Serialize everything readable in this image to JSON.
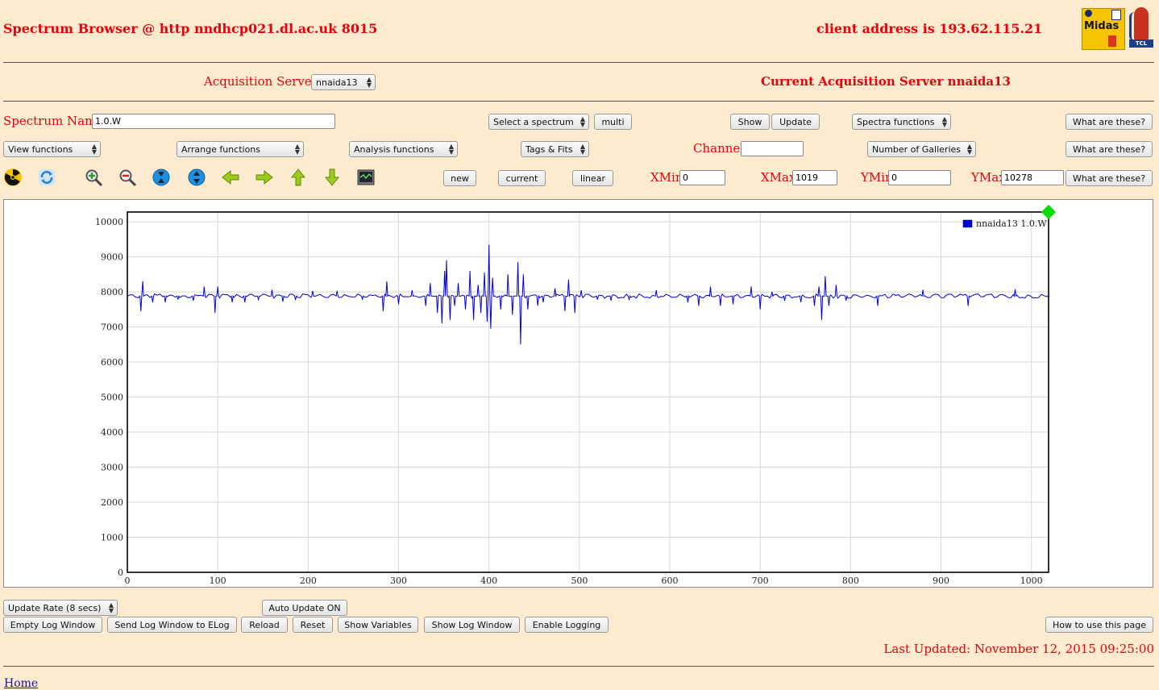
{
  "header": {
    "title": "Spectrum Browser @ http nndhcp021.dl.ac.uk 8015",
    "client_address": "client address is 193.62.115.21",
    "logo_midas": "Midas",
    "logo_tcl": "TCL"
  },
  "acquisition": {
    "label": "Acquisition Servers",
    "server_select": "nnaida13",
    "current": "Current Acquisition Server nnaida13"
  },
  "row1": {
    "spectrum_name_label": "Spectrum Name:",
    "spectrum_name_value": "1.0.W",
    "select_spectrum": "Select a spectrum",
    "multi": "multi",
    "show": "Show",
    "update": "Update",
    "spectra_functions": "Spectra functions",
    "help": "What are these?"
  },
  "row2": {
    "view_functions": "View functions",
    "arrange_functions": "Arrange functions",
    "analysis_functions": "Analysis functions",
    "tags_fits": "Tags & Fits",
    "channel_label": "Channel:",
    "channel_value": "",
    "galleries": "Number of Galleries",
    "help": "What are these?"
  },
  "row3": {
    "new": "new",
    "current": "current",
    "linear": "linear",
    "xmin_label": "XMin",
    "xmin_value": "0",
    "xmax_label": "XMax",
    "xmax_value": "1019",
    "ymin_label": "YMin",
    "ymin_value": "0",
    "ymax_label": "YMax",
    "ymax_value": "10278",
    "help": "What are these?"
  },
  "toolbar_icons": [
    "radiation-icon",
    "refresh-icon",
    "zoom-in-icon",
    "zoom-out-icon",
    "compress-vertical-icon",
    "expand-vertical-icon",
    "arrow-left-icon",
    "arrow-right-icon",
    "arrow-up-icon",
    "arrow-down-icon",
    "monitor-icon"
  ],
  "colors": {
    "accent": "#e8000b",
    "background": "#fdebd0",
    "series": "#0000dd",
    "marker": "#00dd00"
  },
  "chart_data": {
    "type": "line",
    "title": "",
    "xlabel": "",
    "ylabel": "",
    "xlim": [
      0,
      1019
    ],
    "ylim": [
      0,
      10278
    ],
    "xticks": [
      "0",
      "100",
      "200",
      "300",
      "400",
      "500",
      "600",
      "700",
      "800",
      "900",
      "1000"
    ],
    "yticks": [
      "0",
      "1000",
      "2000",
      "3000",
      "4000",
      "5000",
      "6000",
      "7000",
      "8000",
      "9000",
      "10000"
    ],
    "grid": true,
    "legend_position": "top-right",
    "series": [
      {
        "name": "nnaida13 1.0.W",
        "baseline": 7880,
        "spikes": [
          {
            "x": 15,
            "y": 7450
          },
          {
            "x": 17,
            "y": 8300
          },
          {
            "x": 28,
            "y": 7700
          },
          {
            "x": 42,
            "y": 7700
          },
          {
            "x": 56,
            "y": 7780
          },
          {
            "x": 73,
            "y": 7750
          },
          {
            "x": 85,
            "y": 8150
          },
          {
            "x": 97,
            "y": 7400
          },
          {
            "x": 100,
            "y": 8150
          },
          {
            "x": 116,
            "y": 7700
          },
          {
            "x": 130,
            "y": 7700
          },
          {
            "x": 145,
            "y": 7780
          },
          {
            "x": 160,
            "y": 8060
          },
          {
            "x": 172,
            "y": 7720
          },
          {
            "x": 186,
            "y": 7780
          },
          {
            "x": 205,
            "y": 8030
          },
          {
            "x": 232,
            "y": 8030
          },
          {
            "x": 260,
            "y": 7790
          },
          {
            "x": 283,
            "y": 7450
          },
          {
            "x": 287,
            "y": 8300
          },
          {
            "x": 300,
            "y": 7650
          },
          {
            "x": 315,
            "y": 8050
          },
          {
            "x": 330,
            "y": 7600
          },
          {
            "x": 335,
            "y": 8250
          },
          {
            "x": 343,
            "y": 7400
          },
          {
            "x": 348,
            "y": 7100
          },
          {
            "x": 351,
            "y": 8600
          },
          {
            "x": 353,
            "y": 8900
          },
          {
            "x": 357,
            "y": 7200
          },
          {
            "x": 362,
            "y": 7600
          },
          {
            "x": 366,
            "y": 8250
          },
          {
            "x": 374,
            "y": 7500
          },
          {
            "x": 379,
            "y": 8600
          },
          {
            "x": 383,
            "y": 7200
          },
          {
            "x": 388,
            "y": 8200
          },
          {
            "x": 391,
            "y": 7400
          },
          {
            "x": 395,
            "y": 8550
          },
          {
            "x": 398,
            "y": 7150
          },
          {
            "x": 400,
            "y": 9350
          },
          {
            "x": 402,
            "y": 6950
          },
          {
            "x": 404,
            "y": 8400
          },
          {
            "x": 413,
            "y": 7500
          },
          {
            "x": 421,
            "y": 8500
          },
          {
            "x": 426,
            "y": 7350
          },
          {
            "x": 432,
            "y": 8850
          },
          {
            "x": 435,
            "y": 6500
          },
          {
            "x": 438,
            "y": 8500
          },
          {
            "x": 443,
            "y": 7500
          },
          {
            "x": 454,
            "y": 7600
          },
          {
            "x": 460,
            "y": 7700
          },
          {
            "x": 473,
            "y": 8100
          },
          {
            "x": 484,
            "y": 7450
          },
          {
            "x": 488,
            "y": 8350
          },
          {
            "x": 495,
            "y": 7400
          },
          {
            "x": 502,
            "y": 8050
          },
          {
            "x": 520,
            "y": 7780
          },
          {
            "x": 535,
            "y": 7750
          },
          {
            "x": 555,
            "y": 7780
          },
          {
            "x": 585,
            "y": 8050
          },
          {
            "x": 620,
            "y": 7700
          },
          {
            "x": 632,
            "y": 7600
          },
          {
            "x": 645,
            "y": 8150
          },
          {
            "x": 656,
            "y": 7600
          },
          {
            "x": 670,
            "y": 7650
          },
          {
            "x": 690,
            "y": 8150
          },
          {
            "x": 700,
            "y": 7500
          },
          {
            "x": 713,
            "y": 8000
          },
          {
            "x": 727,
            "y": 7750
          },
          {
            "x": 745,
            "y": 7700
          },
          {
            "x": 760,
            "y": 7600
          },
          {
            "x": 765,
            "y": 8150
          },
          {
            "x": 768,
            "y": 7200
          },
          {
            "x": 772,
            "y": 8450
          },
          {
            "x": 776,
            "y": 7600
          },
          {
            "x": 784,
            "y": 8200
          },
          {
            "x": 795,
            "y": 7750
          },
          {
            "x": 830,
            "y": 7600
          },
          {
            "x": 880,
            "y": 8060
          },
          {
            "x": 930,
            "y": 7600
          },
          {
            "x": 982,
            "y": 8070
          },
          {
            "x": 1019,
            "y": 7850
          }
        ]
      }
    ]
  },
  "footer": {
    "update_rate": "Update Rate (8 secs)",
    "auto_update": "Auto Update ON",
    "empty_log": "Empty Log Window",
    "send_log": "Send Log Window to ELog",
    "reload": "Reload",
    "reset": "Reset",
    "show_variables": "Show Variables",
    "show_log": "Show Log Window",
    "enable_logging": "Enable Logging",
    "how_to": "How to use this page",
    "last_updated": "Last Updated: November 12, 2015 09:25:00",
    "home": "Home"
  }
}
